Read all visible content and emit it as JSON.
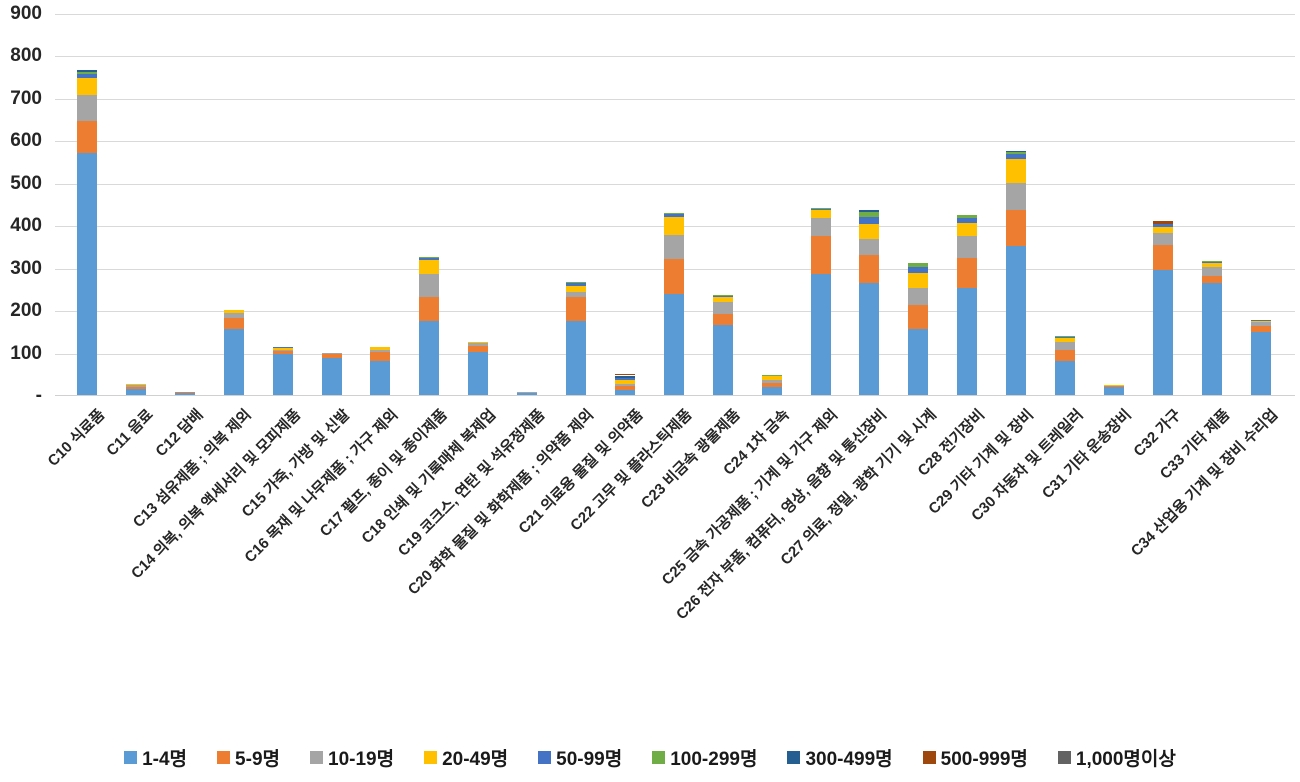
{
  "chart_data": {
    "type": "bar",
    "stacked": true,
    "title": "",
    "xlabel": "",
    "ylabel": "",
    "ylim": [
      0,
      900
    ],
    "ytick_interval": 100,
    "ytick_labels": [
      "-",
      "100",
      "200",
      "300",
      "400",
      "500",
      "600",
      "700",
      "800",
      "900"
    ],
    "grid": true,
    "legend_position": "bottom",
    "gridline_color": "#d9d9d9",
    "categories": [
      "C10 식료품",
      "C11 음료",
      "C12 담배",
      "C13 섬유제품 ; 의복 제외",
      "C14 의복, 의복 액세서리 및 모피제품",
      "C15 가죽, 가방 및 신발",
      "C16 목재 및 나무제품 ; 가구 제외",
      "C17 펄프, 종이 및 종이제품",
      "C18 인쇄 및 기록매체 복제업",
      "C19 코크스, 연탄 및 석유정제품",
      "C20 화학 물질 및 화학제품 ; 의약품 제외",
      "C21 의료용 물질 및 의약품",
      "C22 고무 및 플라스틱제품",
      "C23 비금속 광물제품",
      "C24 1차 금속",
      "C25 금속 가공제품 ; 기계 및 가구 제외",
      "C26 전자 부품, 컴퓨터, 영상, 음향 및 통신장비",
      "C27 의료, 정밀, 광학 기기 및 시계",
      "C28 전기장비",
      "C29 기타 기계 및 장비",
      "C30 자동차 및 트레일러",
      "C31 기타 운송장비",
      "C32 가구",
      "C33 기타 제품",
      "C34 산업용 기계 및 장비 수리업"
    ],
    "series": [
      {
        "name": "1-4명",
        "color": "#5B9BD5",
        "values": [
          570,
          15,
          4,
          155,
          96,
          88,
          80,
          175,
          101,
          4,
          175,
          12,
          237,
          165,
          20,
          285,
          265,
          155,
          253,
          351,
          79,
          18,
          295,
          265,
          148
        ]
      },
      {
        "name": "5-9명",
        "color": "#ED7D31",
        "values": [
          75,
          3,
          1,
          26,
          7,
          9,
          21,
          56,
          15,
          1,
          56,
          9,
          84,
          27,
          8,
          89,
          65,
          58,
          69,
          86,
          26,
          3,
          59,
          15,
          15
        ]
      },
      {
        "name": "10-19명",
        "color": "#A5A5A5",
        "values": [
          63,
          5,
          0,
          12,
          3,
          2,
          6,
          54,
          6,
          1,
          12,
          5,
          55,
          28,
          7,
          42,
          37,
          38,
          53,
          62,
          19,
          1,
          27,
          21,
          8
        ]
      },
      {
        "name": "20-49명",
        "color": "#FFC000",
        "values": [
          40,
          1,
          0,
          7,
          4,
          0,
          5,
          32,
          2,
          0,
          14,
          9,
          44,
          10,
          9,
          21,
          36,
          37,
          31,
          56,
          10,
          1,
          16,
          11,
          4
        ]
      },
      {
        "name": "50-99명",
        "color": "#4472C4",
        "values": [
          8,
          0,
          0,
          0,
          2,
          0,
          0,
          6,
          0,
          0,
          6,
          6,
          7,
          4,
          0,
          2,
          16,
          13,
          12,
          13,
          2,
          0,
          7,
          2,
          1
        ]
      },
      {
        "name": "100-299명",
        "color": "#70AD47",
        "values": [
          5,
          0,
          0,
          0,
          0,
          0,
          0,
          3,
          0,
          0,
          3,
          0,
          3,
          1,
          4,
          2,
          12,
          9,
          6,
          5,
          4,
          0,
          0,
          1,
          0
        ]
      },
      {
        "name": "300-499명",
        "color": "#255E91",
        "values": [
          4,
          0,
          0,
          0,
          0,
          0,
          0,
          0,
          0,
          0,
          0,
          5,
          0,
          0,
          0,
          0,
          4,
          0,
          0,
          3,
          0,
          0,
          0,
          0,
          0
        ]
      },
      {
        "name": "500-999명",
        "color": "#9E480E",
        "values": [
          0,
          0,
          0,
          0,
          0,
          0,
          0,
          0,
          0,
          0,
          0,
          4,
          0,
          0,
          0,
          0,
          0,
          0,
          0,
          0,
          0,
          0,
          5,
          0,
          0
        ]
      },
      {
        "name": "1,000명이상",
        "color": "#636363",
        "values": [
          0,
          0,
          0,
          0,
          0,
          0,
          0,
          0,
          0,
          0,
          0,
          0,
          0,
          0,
          0,
          0,
          0,
          0,
          0,
          0,
          0,
          0,
          0,
          0,
          0
        ]
      }
    ]
  }
}
